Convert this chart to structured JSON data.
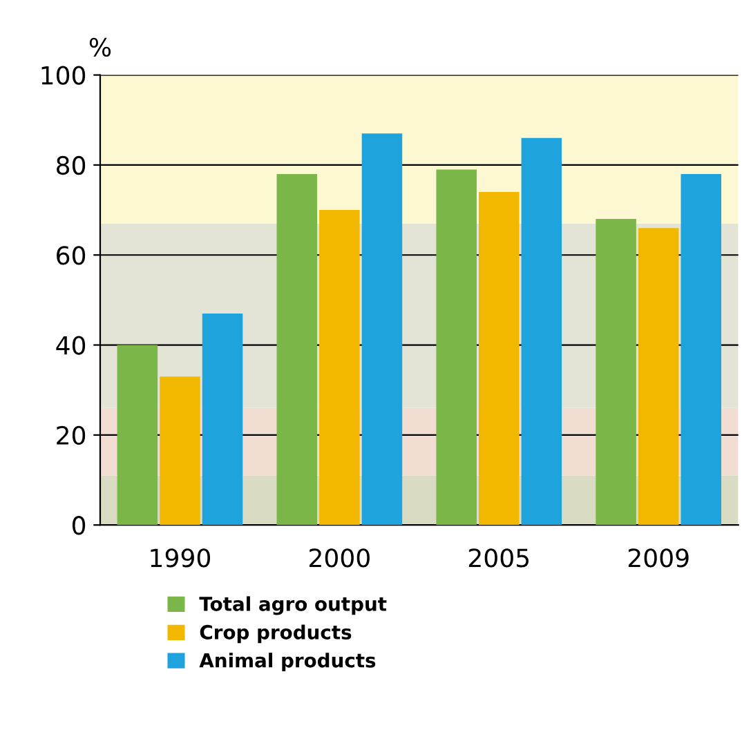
{
  "chart_data": {
    "type": "bar",
    "ylabel": "%",
    "categories": [
      "1990",
      "2000",
      "2005",
      "2009"
    ],
    "series": [
      {
        "name": "Total agro output",
        "color": "#7ab648",
        "values": [
          40,
          78,
          79,
          68
        ]
      },
      {
        "name": "Crop products",
        "color": "#f2b800",
        "values": [
          33,
          70,
          74,
          66
        ]
      },
      {
        "name": "Animal products",
        "color": "#1fa3dc",
        "values": [
          47,
          87,
          86,
          78
        ]
      }
    ],
    "ylim": [
      0,
      100
    ],
    "yticks": [
      0,
      20,
      40,
      60,
      80,
      100
    ],
    "grid": "y",
    "legend": "bottom",
    "bands": [
      {
        "axis": "y",
        "from": 0,
        "to": 11,
        "color": "#d9dcc2"
      },
      {
        "axis": "y",
        "from": 11,
        "to": 26,
        "color": "#f2ddd2"
      },
      {
        "axis": "y",
        "from": 26,
        "to": 67,
        "color": "#e3e3d6"
      },
      {
        "axis": "y",
        "from": 67,
        "to": 100,
        "color": "#fbf8d2"
      }
    ]
  }
}
